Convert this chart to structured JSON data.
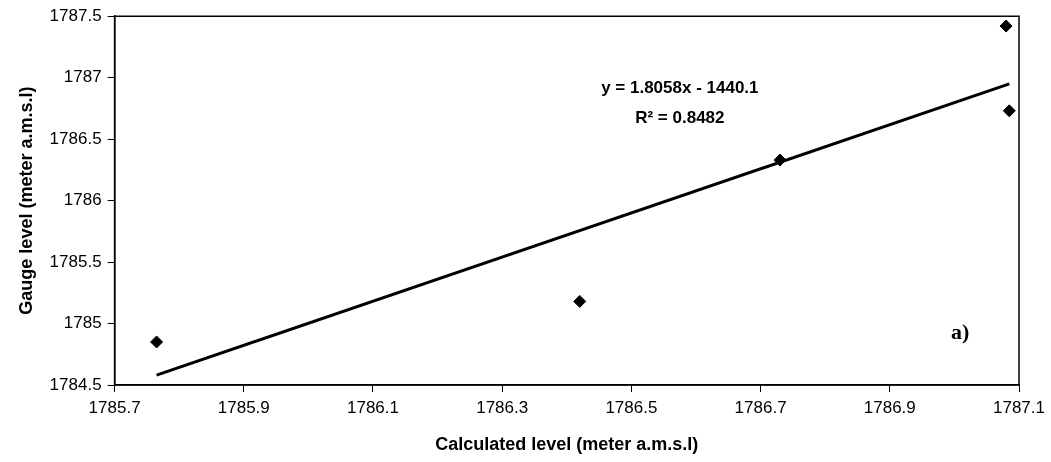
{
  "chart_data": {
    "type": "scatter",
    "xlabel": "Calculated level (meter a.m.s.l)",
    "ylabel": "Gauge level (meter a.m.s.l)",
    "xlim": [
      1785.7,
      1787.1
    ],
    "xticks": [
      1785.7,
      1785.9,
      1786.1,
      1786.3,
      1786.5,
      1786.7,
      1786.9,
      1787.1
    ],
    "ylim": [
      1784.5,
      1787.5
    ],
    "yticks": [
      1784.5,
      1785,
      1785.5,
      1786,
      1786.5,
      1787,
      1787.5
    ],
    "grid": false,
    "legend": false,
    "marker": "diamond",
    "series": [
      {
        "color": "#000000",
        "x": [
          1785.765,
          1786.42,
          1786.73,
          1787.08,
          1787.085
        ],
        "values": [
          1784.85,
          1785.18,
          1786.33,
          1787.42,
          1786.73
        ]
      },
      {
        "type": "line",
        "color": "#000000",
        "x": [
          1785.765,
          1787.085
        ],
        "values": [
          1784.58,
          1786.95
        ],
        "line_style": "solid",
        "marker": "none"
      }
    ],
    "annotations": [
      "y = 1.8058x - 1440.1",
      "R² = 0.8482",
      "a)"
    ]
  }
}
